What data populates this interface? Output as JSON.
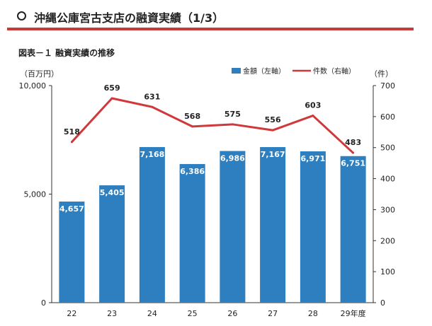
{
  "header": {
    "title": "沖縄公庫宮古支店の融資実績（1/3）"
  },
  "figure": {
    "title": "図表－１ 融資実績の推移"
  },
  "chart_data": {
    "type": "bar",
    "categories": [
      "22",
      "23",
      "24",
      "25",
      "26",
      "27",
      "28",
      "29年度"
    ],
    "series": [
      {
        "name": "金額（左軸）",
        "type": "bar",
        "axis": "left",
        "color": "#2e7fbf",
        "values": [
          4657,
          5405,
          7168,
          6386,
          6986,
          7167,
          6971,
          6751
        ],
        "labels": [
          "4,657",
          "5,405",
          "7,168",
          "6,386",
          "6,986",
          "7,167",
          "6,971",
          "6,751"
        ]
      },
      {
        "name": "件数（右軸）",
        "type": "line",
        "axis": "right",
        "color": "#d0393b",
        "values": [
          518,
          659,
          631,
          568,
          575,
          556,
          603,
          483
        ],
        "labels": [
          "518",
          "659",
          "631",
          "568",
          "575",
          "556",
          "603",
          "483"
        ]
      }
    ],
    "left_axis": {
      "unit": "（百万円）",
      "ylim": [
        0,
        10000
      ],
      "ticks": [
        0,
        5000,
        10000
      ],
      "tick_labels": [
        "0",
        "5,000",
        "10,000"
      ]
    },
    "right_axis": {
      "unit": "（件）",
      "ylim": [
        0,
        700
      ],
      "ticks": [
        0,
        100,
        200,
        300,
        400,
        500,
        600,
        700
      ],
      "tick_labels": [
        "0",
        "100",
        "200",
        "300",
        "400",
        "500",
        "600",
        "700"
      ]
    },
    "legend_position": "top-right",
    "grid": false
  }
}
